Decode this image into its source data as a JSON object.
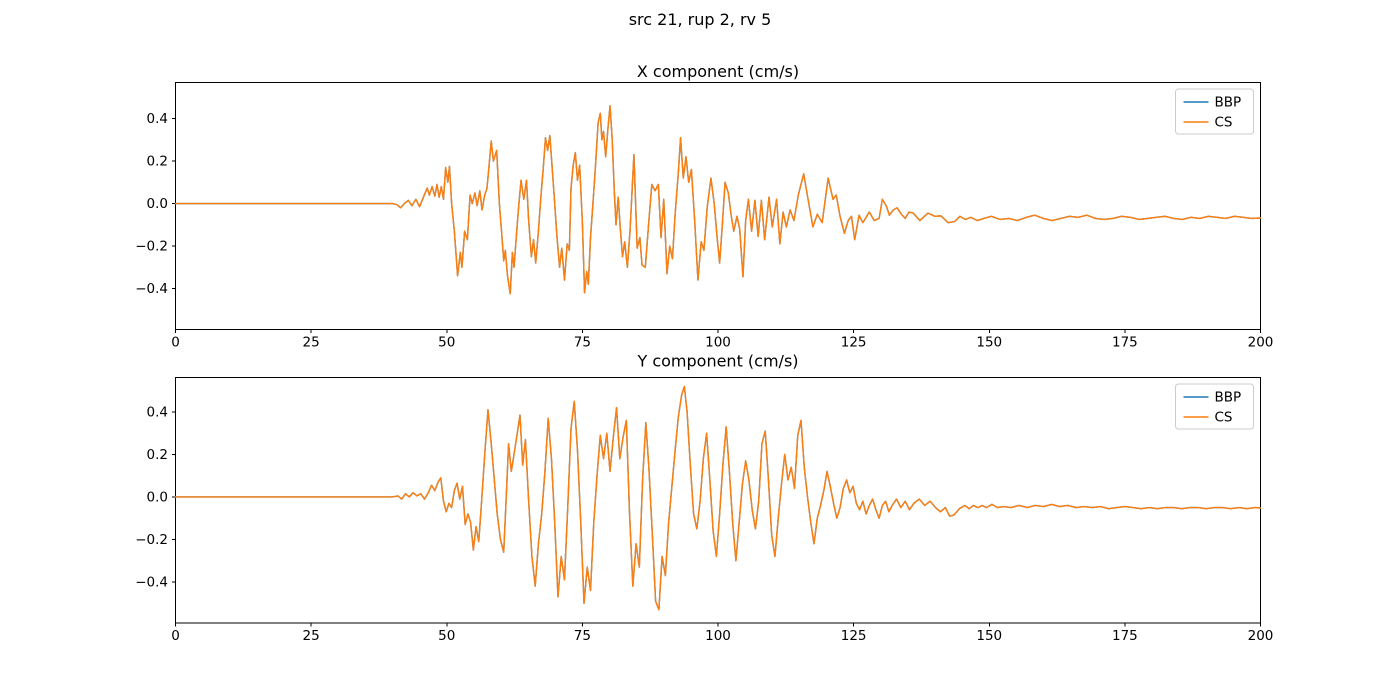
{
  "figure": {
    "suptitle": "src 21, rup 2, rv 5",
    "background": "#ffffff"
  },
  "legend": {
    "position": "upper right",
    "entries": [
      {
        "label": "BBP",
        "color": "#1f77b4"
      },
      {
        "label": "CS",
        "color": "#ff7f0e"
      }
    ]
  },
  "chart_data": [
    {
      "type": "line",
      "title": "X component (cm/s)",
      "xlabel": "",
      "ylabel": "",
      "xlim": [
        0,
        200
      ],
      "ylim": [
        -0.593,
        0.57
      ],
      "xticks": [
        0,
        25,
        50,
        75,
        100,
        125,
        150,
        175,
        200
      ],
      "xticklabels": [
        "0",
        "25",
        "50",
        "75",
        "100",
        "125",
        "150",
        "175",
        "200"
      ],
      "yticks": [
        0.4,
        0.2,
        0.0,
        -0.2,
        -0.4
      ],
      "yticklabels": [
        "0.4",
        "0.2",
        "0.0",
        "−0.2",
        "−0.4"
      ],
      "grid": false,
      "legend_position": "upper right",
      "series": [
        {
          "name": "BBP",
          "color": "#1f77b4",
          "points": "shared"
        },
        {
          "name": "CS",
          "color": "#ff7f0e",
          "points": "shared"
        }
      ],
      "note": "BBP and CS traces overlap almost exactly; CS is drawn on top so only orange is visible",
      "points_t_v": [
        0,
        0,
        4,
        0,
        8,
        0,
        12,
        0,
        16,
        0,
        20,
        0,
        24,
        0,
        28,
        0,
        32,
        0,
        36,
        0,
        40,
        0,
        40.8,
        -0.005,
        41.5,
        -0.02,
        42.2,
        0,
        42.9,
        0.015,
        43.6,
        -0.01,
        44.3,
        0.02,
        45,
        -0.015,
        45.7,
        0.03,
        46.4,
        0.073,
        46.8,
        0.04,
        47.3,
        0.08,
        47.8,
        0.035,
        48.2,
        0.09,
        48.6,
        0.03,
        49,
        0.08,
        49.4,
        0.02,
        49.8,
        0.17,
        50.2,
        0.1,
        50.5,
        0.175,
        50.9,
        0,
        51.4,
        -0.13,
        52,
        -0.34,
        52.5,
        -0.23,
        52.8,
        -0.3,
        53.3,
        -0.13,
        53.8,
        -0.17,
        54.3,
        0.04,
        54.7,
        0,
        55.2,
        0.05,
        55.6,
        -0.01,
        56.1,
        0.06,
        56.5,
        -0.03,
        57,
        0.04,
        57.4,
        0.07,
        57.7,
        0.15,
        58.2,
        0.295,
        58.6,
        0.2,
        59.2,
        0.25,
        59.7,
        0,
        60.1,
        -0.13,
        60.5,
        -0.27,
        60.8,
        -0.22,
        61.2,
        -0.34,
        61.7,
        -0.425,
        62.1,
        -0.23,
        62.4,
        -0.3,
        62.9,
        -0.13,
        63.3,
        0,
        63.7,
        0.11,
        64.2,
        0.02,
        64.7,
        0.11,
        65.1,
        -0.08,
        65.6,
        -0.25,
        66,
        -0.17,
        66.4,
        -0.28,
        66.9,
        -0.13,
        67.3,
        0.015,
        67.8,
        0.17,
        68.2,
        0.31,
        68.6,
        0.25,
        69,
        0.32,
        69.4,
        0.18,
        69.9,
        0,
        70.3,
        -0.15,
        70.8,
        -0.3,
        71.2,
        -0.21,
        71.7,
        -0.36,
        72.2,
        -0.19,
        72.6,
        -0.22,
        72.9,
        0.07,
        73.3,
        0.18,
        73.7,
        0.24,
        74.1,
        0.11,
        74.5,
        0.18,
        75,
        -0.09,
        75.4,
        -0.42,
        75.8,
        -0.32,
        76.1,
        -0.38,
        76.5,
        -0.16,
        77,
        0.02,
        77.4,
        0.17,
        77.9,
        0.38,
        78.3,
        0.425,
        78.6,
        0.3,
        78.9,
        0.34,
        79.3,
        0.22,
        79.7,
        0.35,
        80.1,
        0.46,
        80.5,
        0.3,
        80.9,
        0.05,
        81.2,
        -0.1,
        81.6,
        0.03,
        82,
        -0.12,
        82.4,
        -0.25,
        82.8,
        -0.18,
        83.3,
        -0.3,
        83.8,
        -0.12,
        84.5,
        0.23,
        85.1,
        -0.21,
        85.6,
        -0.16,
        86,
        -0.29,
        86.6,
        -0.3,
        87.2,
        -0.1,
        87.8,
        0.09,
        88.4,
        0.06,
        89,
        0.09,
        89.5,
        -0.16,
        90,
        0.02,
        90.6,
        -0.33,
        91.1,
        -0.2,
        91.6,
        -0.26,
        92.1,
        -0.05,
        92.7,
        0.15,
        93.1,
        0.31,
        93.6,
        0.12,
        94.1,
        0.22,
        94.6,
        0.1,
        95.1,
        0.16,
        95.7,
        -0.08,
        96.3,
        -0.36,
        96.9,
        -0.18,
        97.4,
        -0.22,
        98,
        -0.02,
        98.7,
        0.12,
        99.3,
        0,
        99.8,
        -0.15,
        100.3,
        -0.28,
        100.8,
        -0.1,
        101.3,
        0.1,
        101.9,
        0.05,
        102.4,
        -0.05,
        102.9,
        -0.13,
        103.5,
        -0.06,
        104,
        -0.12,
        104.6,
        -0.345,
        105.1,
        -0.08,
        105.6,
        0.02,
        106.2,
        -0.13,
        106.8,
        0.015,
        107.4,
        -0.155,
        108,
        0.015,
        108.6,
        -0.17,
        109.4,
        0.03,
        110,
        -0.11,
        110.8,
        0.02,
        111.4,
        -0.19,
        112,
        -0.04,
        112.6,
        -0.11,
        113.3,
        -0.03,
        114,
        -0.08,
        114.8,
        0.04,
        115.8,
        0.14,
        116.6,
        0.02,
        117.5,
        -0.11,
        118.3,
        -0.05,
        119.2,
        -0.09,
        120.3,
        0.12,
        121.2,
        0.02,
        121.8,
        0.04,
        122.5,
        -0.06,
        123.3,
        -0.14,
        124,
        -0.08,
        124.6,
        -0.06,
        125.2,
        -0.17,
        126,
        -0.055,
        126.7,
        -0.09,
        127.9,
        -0.04,
        128.8,
        -0.08,
        129.7,
        -0.07,
        130.3,
        0.02,
        131,
        -0.01,
        131.6,
        -0.055,
        132.3,
        -0.03,
        133,
        -0.02,
        133.8,
        -0.05,
        134.5,
        -0.07,
        135.2,
        -0.04,
        136,
        -0.045,
        137.2,
        -0.08,
        138.7,
        -0.045,
        140,
        -0.06,
        141.1,
        -0.058,
        142.4,
        -0.09,
        143.6,
        -0.085,
        144.6,
        -0.06,
        145.6,
        -0.075,
        146.6,
        -0.065,
        147.8,
        -0.08,
        149,
        -0.07,
        150.4,
        -0.06,
        152,
        -0.075,
        153.6,
        -0.07,
        155.2,
        -0.08,
        156.8,
        -0.065,
        158.4,
        -0.055,
        160,
        -0.07,
        161.6,
        -0.08,
        163.2,
        -0.07,
        164.8,
        -0.06,
        166.4,
        -0.065,
        168,
        -0.055,
        169.6,
        -0.07,
        171.2,
        -0.075,
        172.8,
        -0.07,
        174.4,
        -0.06,
        176,
        -0.065,
        177.6,
        -0.075,
        179.2,
        -0.07,
        180.8,
        -0.065,
        182.4,
        -0.06,
        184,
        -0.07,
        185.6,
        -0.075,
        187.2,
        -0.065,
        188.8,
        -0.07,
        190.4,
        -0.06,
        192,
        -0.065,
        193.6,
        -0.07,
        195.2,
        -0.06,
        196.8,
        -0.065,
        198.4,
        -0.07,
        200,
        -0.068
      ]
    },
    {
      "type": "line",
      "title": "Y component (cm/s)",
      "xlabel": "",
      "ylabel": "",
      "xlim": [
        0,
        200
      ],
      "ylim": [
        -0.593,
        0.562
      ],
      "xticks": [
        0,
        25,
        50,
        75,
        100,
        125,
        150,
        175,
        200
      ],
      "xticklabels": [
        "0",
        "25",
        "50",
        "75",
        "100",
        "125",
        "150",
        "175",
        "200"
      ],
      "yticks": [
        0.4,
        0.2,
        0.0,
        -0.2,
        -0.4
      ],
      "yticklabels": [
        "0.4",
        "0.2",
        "0.0",
        "−0.2",
        "−0.4"
      ],
      "grid": false,
      "legend_position": "upper right",
      "series": [
        {
          "name": "BBP",
          "color": "#1f77b4",
          "points": "shared"
        },
        {
          "name": "CS",
          "color": "#ff7f0e",
          "points": "shared"
        }
      ],
      "note": "BBP and CS traces overlap almost exactly; CS is drawn on top so only orange is visible",
      "points_t_v": [
        0,
        0,
        4,
        0,
        8,
        0,
        12,
        0,
        16,
        0,
        20,
        0,
        24,
        0,
        28,
        0,
        32,
        0,
        36,
        0,
        40,
        0,
        41,
        0.005,
        41.7,
        -0.01,
        42.4,
        0.015,
        43.1,
        0,
        43.8,
        0.02,
        44.5,
        0.005,
        45.2,
        0.015,
        45.9,
        -0.01,
        46.6,
        0.02,
        47.2,
        0.055,
        47.8,
        0.03,
        48.4,
        0.07,
        48.9,
        0.09,
        49.4,
        -0.02,
        49.9,
        -0.07,
        50.4,
        -0.03,
        50.9,
        -0.05,
        51.4,
        0.03,
        51.9,
        0.065,
        52.4,
        -0.01,
        52.9,
        0.05,
        53.4,
        -0.13,
        53.9,
        -0.08,
        54.4,
        -0.12,
        54.9,
        -0.25,
        55.4,
        -0.14,
        55.9,
        -0.21,
        56.4,
        -0.03,
        57,
        0.2,
        57.6,
        0.41,
        58.2,
        0.25,
        58.7,
        0.1,
        59.3,
        -0.08,
        59.9,
        -0.2,
        60.5,
        -0.26,
        61,
        0.02,
        61.4,
        0.25,
        61.9,
        0.12,
        62.4,
        0.2,
        63,
        0.3,
        63.5,
        0.385,
        64,
        0.15,
        64.5,
        0.27,
        65.1,
        -0.02,
        65.7,
        -0.28,
        66.3,
        -0.42,
        66.9,
        -0.22,
        67.5,
        -0.08,
        68.1,
        0.12,
        68.7,
        0.37,
        69.3,
        0.18,
        69.9,
        -0.12,
        70.5,
        -0.47,
        71.1,
        -0.28,
        71.7,
        -0.39,
        72.3,
        -0.05,
        72.9,
        0.32,
        73.5,
        0.45,
        74.1,
        0.22,
        74.7,
        -0.12,
        75.3,
        -0.5,
        75.9,
        -0.33,
        76.5,
        -0.44,
        77.1,
        -0.12,
        77.7,
        0.1,
        78.3,
        0.29,
        78.9,
        0.18,
        79.5,
        0.3,
        80.1,
        0.12,
        80.7,
        0.28,
        81.3,
        0.42,
        81.9,
        0.18,
        82.5,
        0.28,
        83.1,
        0.36,
        83.7,
        -0.08,
        84.3,
        -0.42,
        84.9,
        -0.22,
        85.5,
        -0.33,
        86.1,
        0.08,
        86.7,
        0.35,
        87.3,
        0.12,
        87.9,
        -0.18,
        88.5,
        -0.49,
        89.1,
        -0.53,
        89.7,
        -0.28,
        90.3,
        -0.37,
        90.9,
        -0.12,
        91.5,
        0.05,
        92.1,
        0.22,
        92.7,
        0.38,
        93.3,
        0.48,
        93.8,
        0.52,
        94.3,
        0.4,
        94.9,
        0.15,
        95.5,
        -0.08,
        96.1,
        -0.15,
        96.7,
        -0.02,
        97.3,
        0.18,
        97.9,
        0.3,
        98.5,
        0.08,
        99.1,
        -0.16,
        99.7,
        -0.28,
        100.3,
        -0.08,
        100.9,
        0.15,
        101.5,
        0.33,
        102.1,
        0.12,
        102.7,
        -0.12,
        103.3,
        -0.3,
        103.9,
        -0.12,
        104.5,
        0.06,
        105.1,
        0.17,
        105.7,
        0.08,
        106.3,
        -0.06,
        106.9,
        -0.15,
        107.5,
        -0.02,
        108.1,
        0.25,
        108.7,
        0.31,
        109.3,
        0.08,
        109.9,
        -0.18,
        110.5,
        -0.28,
        111.1,
        -0.1,
        111.7,
        0.06,
        112.3,
        0.2,
        112.9,
        0.08,
        113.5,
        0.14,
        114.1,
        0.04,
        114.7,
        0.29,
        115.3,
        0.36,
        115.9,
        0.14,
        116.5,
        0,
        117.1,
        -0.12,
        117.7,
        -0.22,
        118.3,
        -0.1,
        118.9,
        -0.04,
        119.5,
        0.03,
        120.1,
        0.12,
        120.7,
        0.05,
        121.3,
        -0.03,
        121.9,
        -0.1,
        122.5,
        -0.05,
        123.1,
        0.04,
        123.7,
        0.08,
        124.3,
        0.02,
        124.9,
        0.05,
        125.5,
        -0.03,
        126.1,
        -0.06,
        126.7,
        -0.02,
        127.3,
        -0.08,
        127.9,
        -0.04,
        128.5,
        -0.01,
        129.1,
        -0.06,
        129.7,
        -0.1,
        130.3,
        -0.04,
        130.9,
        -0.02,
        131.5,
        -0.07,
        132.1,
        -0.04,
        132.9,
        -0.01,
        133.7,
        -0.05,
        134.5,
        -0.02,
        135.3,
        -0.06,
        136.1,
        -0.03,
        137.1,
        -0.01,
        138.1,
        -0.04,
        139.1,
        -0.02,
        140.1,
        -0.05,
        141,
        -0.07,
        141.9,
        -0.05,
        142.7,
        -0.09,
        143.5,
        -0.085,
        144.5,
        -0.055,
        145.5,
        -0.04,
        146.3,
        -0.055,
        147.1,
        -0.04,
        147.9,
        -0.05,
        148.7,
        -0.04,
        149.5,
        -0.05,
        150.5,
        -0.035,
        151.5,
        -0.05,
        152.7,
        -0.045,
        154,
        -0.05,
        155.5,
        -0.04,
        157,
        -0.05,
        158.5,
        -0.04,
        160,
        -0.045,
        161.5,
        -0.035,
        163,
        -0.045,
        164.5,
        -0.04,
        166,
        -0.05,
        167.5,
        -0.045,
        169,
        -0.05,
        170.5,
        -0.045,
        172,
        -0.055,
        173.5,
        -0.05,
        175,
        -0.045,
        176.5,
        -0.05,
        178,
        -0.055,
        179.5,
        -0.05,
        181,
        -0.055,
        182.5,
        -0.05,
        184,
        -0.05,
        185.5,
        -0.055,
        187,
        -0.05,
        188.5,
        -0.05,
        190,
        -0.055,
        191.5,
        -0.05,
        193,
        -0.05,
        194.5,
        -0.055,
        196,
        -0.05,
        197.5,
        -0.055,
        199,
        -0.05,
        200,
        -0.052
      ]
    }
  ]
}
